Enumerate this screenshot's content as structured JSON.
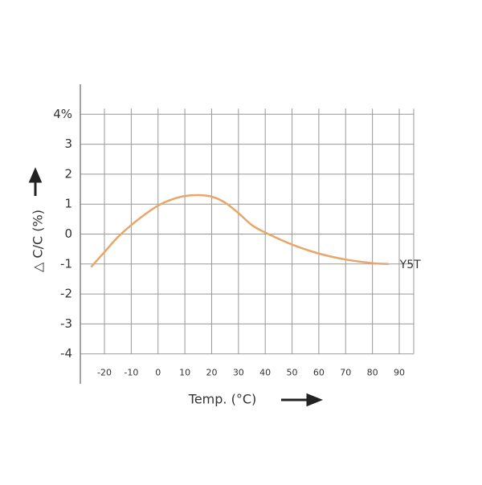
{
  "chart_data": {
    "type": "line",
    "y_label": "△  C/C (%)",
    "x_label": "Temp. (°C)",
    "annotation": "Y5T",
    "xlim": [
      -29,
      95.4
    ],
    "ylim": [
      -5,
      5
    ],
    "xticks": [
      -20,
      -10,
      0,
      10,
      20,
      30,
      40,
      50,
      60,
      70,
      80,
      90
    ],
    "yticks": [
      {
        "value": 4,
        "label": "4%"
      },
      3,
      2,
      1,
      0,
      -1,
      -2,
      -3,
      -4
    ],
    "grid": true,
    "series": [
      {
        "name": "Y5T",
        "color": "#e8a66a",
        "x": [
          -25,
          -20,
          -15,
          -10,
          -5,
          0,
          5,
          10,
          15,
          20,
          25,
          30,
          35,
          40,
          50,
          60,
          70,
          80,
          86
        ],
        "values": [
          -1.1,
          -0.6,
          -0.1,
          0.3,
          0.65,
          0.95,
          1.15,
          1.27,
          1.3,
          1.25,
          1.05,
          0.7,
          0.3,
          0.05,
          -0.35,
          -0.65,
          -0.85,
          -0.97,
          -1.0
        ]
      }
    ]
  }
}
